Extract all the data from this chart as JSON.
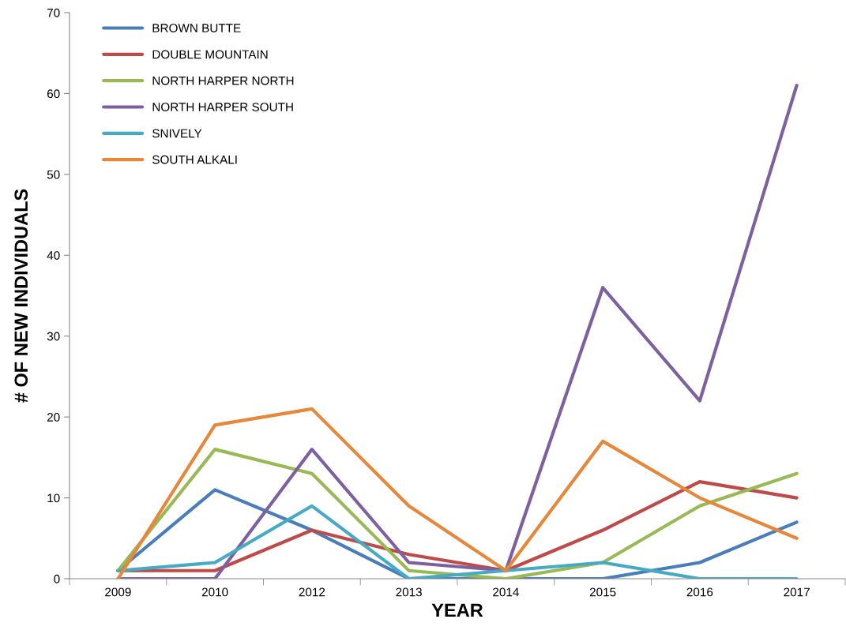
{
  "chart_data": {
    "type": "line",
    "xlabel": "YEAR",
    "ylabel": "# OF NEW INDIVIDUALS",
    "categories": [
      "2009",
      "2010",
      "2012",
      "2013",
      "2014",
      "2015",
      "2016",
      "2017"
    ],
    "series": [
      {
        "name": "BROWN BUTTE",
        "color": "#4a7ebb",
        "values": [
          1,
          11,
          6,
          0,
          0,
          0,
          2,
          7
        ]
      },
      {
        "name": "DOUBLE MOUNTAIN",
        "color": "#be4b48",
        "values": [
          1,
          1,
          6,
          3,
          1,
          6,
          12,
          10
        ]
      },
      {
        "name": "NORTH HARPER NORTH",
        "color": "#98b954",
        "values": [
          1,
          16,
          13,
          1,
          0,
          2,
          9,
          13
        ]
      },
      {
        "name": "NORTH HARPER SOUTH",
        "color": "#7d60a0",
        "values": [
          0,
          0,
          16,
          2,
          1,
          36,
          22,
          61
        ]
      },
      {
        "name": "SNIVELY",
        "color": "#46aac5",
        "values": [
          1,
          2,
          9,
          0,
          1,
          2,
          0,
          0
        ]
      },
      {
        "name": "SOUTH ALKALI",
        "color": "#e6873a",
        "values": [
          0,
          19,
          21,
          9,
          1,
          17,
          10,
          5
        ]
      }
    ],
    "ylim": [
      0,
      70
    ],
    "yticks": [
      0,
      10,
      20,
      30,
      40,
      50,
      60,
      70
    ],
    "grid": false,
    "legend": "top left",
    "marker": "none",
    "line_style": "solid"
  }
}
